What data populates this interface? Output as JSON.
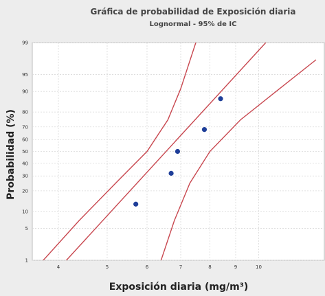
{
  "chart_data": {
    "type": "scatter",
    "title": "Gráfica de probabilidad de Exposición diaria",
    "subtitle": "Lognormal - 95% de IC",
    "xlabel": "Exposición diaria (mg/m³)",
    "ylabel": "Probabilidad (%)",
    "x_scale": "log",
    "y_scale": "normal-probability",
    "xlim": [
      3.55,
      13.5
    ],
    "ylim": [
      1,
      99
    ],
    "x_ticks": [
      4,
      5,
      6,
      7,
      8,
      9,
      10
    ],
    "y_ticks": [
      1,
      5,
      10,
      20,
      30,
      40,
      50,
      60,
      70,
      80,
      90,
      95,
      99
    ],
    "grid": true,
    "point_color": "#1f3f99",
    "line_color": "#c8474f",
    "points": [
      {
        "x": 5.7,
        "y": 13
      },
      {
        "x": 6.7,
        "y": 32
      },
      {
        "x": 6.9,
        "y": 50
      },
      {
        "x": 7.8,
        "y": 68
      },
      {
        "x": 8.4,
        "y": 87
      }
    ],
    "fit_line": [
      [
        3.95,
        0.5
      ],
      [
        12.0,
        99.9
      ]
    ],
    "ci_lower": [
      [
        6.25,
        0.4
      ],
      [
        6.8,
        7
      ],
      [
        7.3,
        25
      ],
      [
        8.0,
        50
      ],
      [
        9.2,
        75
      ],
      [
        11.0,
        91
      ],
      [
        13.0,
        97.5
      ]
    ],
    "ci_upper": [
      [
        3.6,
        0.6
      ],
      [
        4.4,
        7
      ],
      [
        5.2,
        25
      ],
      [
        6.0,
        50
      ],
      [
        6.6,
        75
      ],
      [
        7.0,
        91
      ],
      [
        7.5,
        99
      ]
    ]
  }
}
